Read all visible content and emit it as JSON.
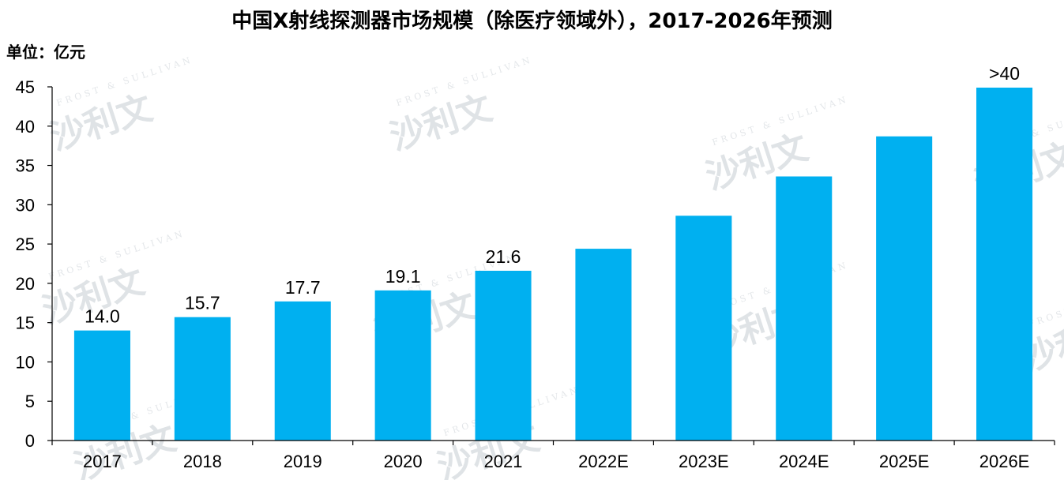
{
  "chart_data": {
    "type": "bar",
    "title": "中国X射线探测器市场规模（除医疗领域外），2017-2026年预测",
    "unit_label": "单位：亿元",
    "categories": [
      "2017",
      "2018",
      "2019",
      "2020",
      "2021",
      "2022E",
      "2023E",
      "2024E",
      "2025E",
      "2026E"
    ],
    "values": [
      14.0,
      15.7,
      17.7,
      19.1,
      21.6,
      24.4,
      28.6,
      33.6,
      38.7,
      44.9
    ],
    "data_labels": [
      "14.0",
      "15.7",
      "17.7",
      "19.1",
      "21.6",
      "",
      "",
      "",
      "",
      ">40"
    ],
    "ylim": [
      0,
      45
    ],
    "yticks": [
      0,
      5,
      10,
      15,
      20,
      25,
      30,
      35,
      40,
      45
    ],
    "grid": false,
    "bar_color": "#00b0f0",
    "watermark": {
      "text": "沙利文",
      "subtext": "FROST & SULLIVAN"
    }
  }
}
